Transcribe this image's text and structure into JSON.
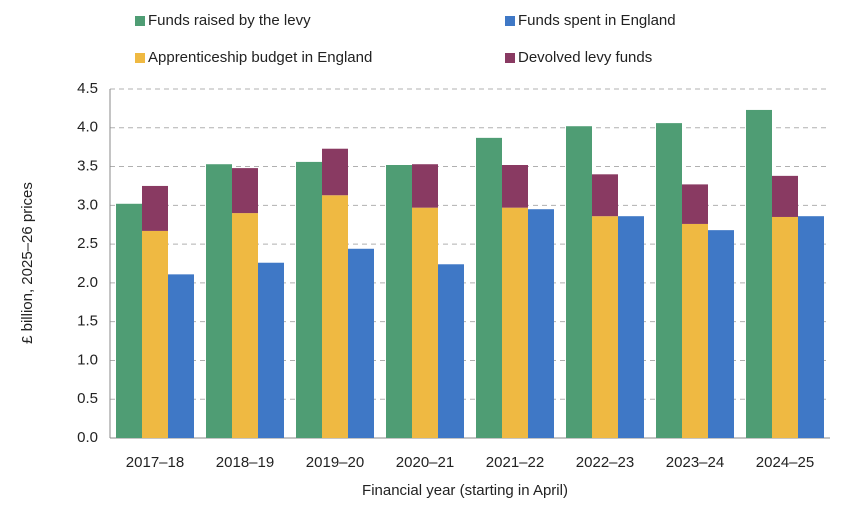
{
  "chart_data": {
    "type": "bar",
    "x_label": "Financial year (starting in April)",
    "y_label": "£ billion, 2025–26 prices",
    "categories": [
      "2017–18",
      "2018–19",
      "2019–20",
      "2020–21",
      "2021–22",
      "2022–23",
      "2023–24",
      "2024–25"
    ],
    "series": [
      {
        "name": "Funds raised by the levy",
        "color": "#4f9d74",
        "values": [
          3.02,
          3.53,
          3.56,
          3.52,
          3.87,
          4.02,
          4.06,
          4.23
        ]
      },
      {
        "name": "Apprenticeship budget in England",
        "color": "#efb942",
        "values": [
          2.67,
          2.9,
          3.13,
          2.97,
          2.97,
          2.86,
          2.76,
          2.85
        ]
      },
      {
        "name": "Devolved levy funds",
        "color": "#893a62",
        "stacked": true,
        "values": [
          0.58,
          0.58,
          0.6,
          0.56,
          0.55,
          0.54,
          0.51,
          0.53
        ]
      },
      {
        "name": "Funds spent in England",
        "color": "#3f78c6",
        "values": [
          2.11,
          2.26,
          2.44,
          2.24,
          2.95,
          2.86,
          2.68,
          2.86
        ]
      }
    ],
    "ylim": [
      0,
      4.5
    ],
    "yticks": [
      {
        "value": 0,
        "label": "0.0"
      },
      0.5,
      {
        "value": 1,
        "label": "1.0"
      },
      1.5,
      {
        "value": 2,
        "label": "2.0"
      },
      2.5,
      {
        "value": 3,
        "label": "3.0"
      },
      3.5,
      {
        "value": 4,
        "label": "4.0"
      },
      4.5
    ],
    "grid": true
  }
}
